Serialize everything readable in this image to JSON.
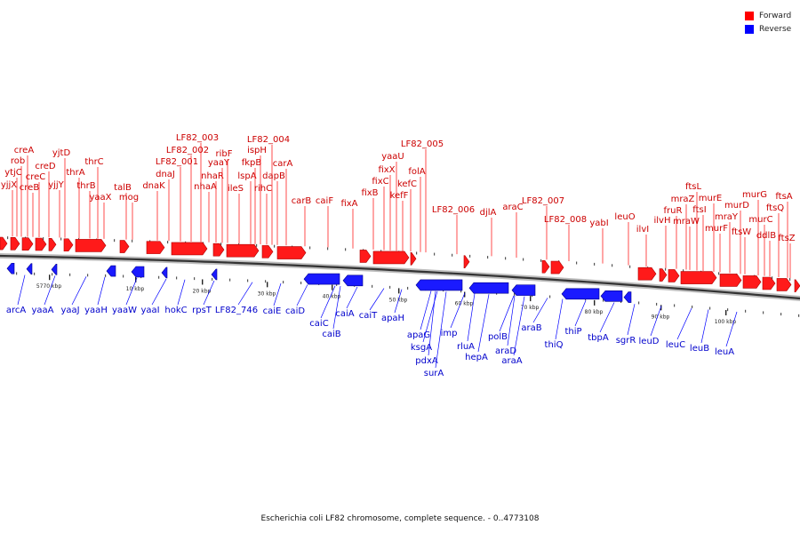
{
  "legend": {
    "forward_label": "Forward",
    "reverse_label": "Reverse",
    "forward_color": "#ff0000",
    "reverse_color": "#0000ff"
  },
  "caption": "Escherichia coli LF82 chromosome, complete sequence. - 0..4773108",
  "ticks": [
    "5770 kbp",
    "10 kbp",
    "20 kbp",
    "30 kbp",
    "40 kbp",
    "50 kbp",
    "60 kbp",
    "70 kbp",
    "80 kbp",
    "90 kbp",
    "100 kbp"
  ],
  "forward_genes": [
    "creA",
    "rob",
    "ytjC",
    "yjjX",
    "creC",
    "creB",
    "creD",
    "yjjY",
    "yjtD",
    "thrA",
    "thrB",
    "thrC",
    "yaaX",
    "talB",
    "mog",
    "dnaK",
    "LF82_001",
    "dnaJ",
    "LF82_002",
    "LF82_003",
    "nhaA",
    "nhaR",
    "yaaY",
    "ribF",
    "ileS",
    "lspA",
    "fkpB",
    "ispH",
    "LF82_004",
    "rihC",
    "dapB",
    "carA",
    "carB",
    "caiF",
    "fixA",
    "fixB",
    "fixC",
    "fixX",
    "yaaU",
    "kefF",
    "kefC",
    "folA",
    "LF82_005",
    "LF82_006",
    "djlA",
    "araC",
    "LF82_007",
    "LF82_008",
    "yabI",
    "leuO",
    "ilvI",
    "ilvH",
    "fruR",
    "mraZ",
    "ftsL",
    "ftsI",
    "mraW",
    "murE",
    "murF",
    "mraY",
    "murD",
    "ftsW",
    "murG",
    "murC",
    "ddlB",
    "ftsQ",
    "ftsA",
    "ftsZ"
  ],
  "reverse_genes": [
    "arcA",
    "yaaA",
    "yaaJ",
    "yaaH",
    "yaaW",
    "yaaI",
    "hokC",
    "rpsT",
    "LF82_746",
    "caiE",
    "caiD",
    "caiC",
    "caiB",
    "caiA",
    "caiT",
    "apaH",
    "apaG",
    "ksgA",
    "pdxA",
    "surA",
    "imp",
    "rluA",
    "hepA",
    "polB",
    "araD",
    "araA",
    "araB",
    "thiQ",
    "thiP",
    "tbpA",
    "sgrR",
    "leuD",
    "leuC",
    "leuB",
    "leuA"
  ]
}
